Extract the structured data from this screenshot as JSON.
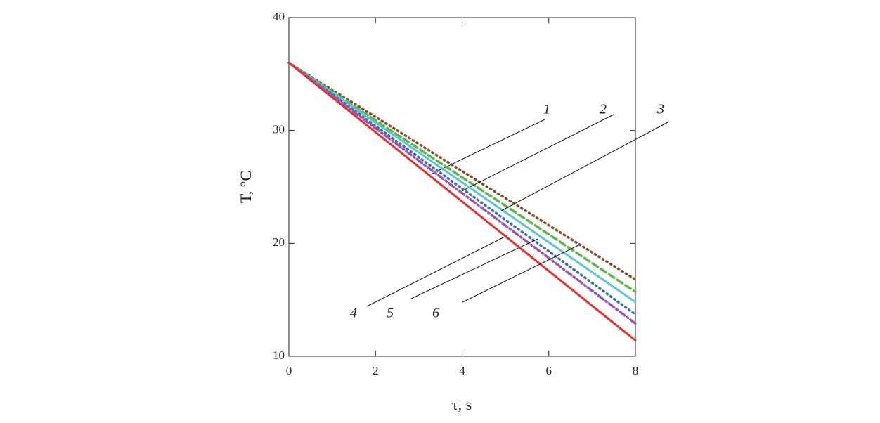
{
  "chart_data": {
    "type": "line",
    "xlabel": "τ, s",
    "ylabel": "T, °C",
    "x": [
      0,
      2,
      4,
      6,
      8
    ],
    "xlim": [
      0,
      8
    ],
    "xticks": [
      0,
      2,
      4,
      6,
      8
    ],
    "ylim": [
      10,
      40
    ],
    "yticks": [
      10,
      20,
      30,
      40
    ],
    "grid": false,
    "series": [
      {
        "name": "1",
        "color": "#8b4a2b",
        "style": "dotted",
        "values": [
          36,
          31.2,
          26.4,
          21.6,
          16.8
        ]
      },
      {
        "name": "2",
        "color": "#5cb84a",
        "style": "dashed",
        "values": [
          36,
          30.9,
          25.85,
          20.8,
          15.7
        ]
      },
      {
        "name": "3",
        "color": "#5bc4d8",
        "style": "solid",
        "values": [
          36,
          30.7,
          25.4,
          20.1,
          14.8
        ]
      },
      {
        "name": "4",
        "color": "#3a6fb0",
        "style": "dotted",
        "values": [
          36,
          30.4,
          24.85,
          19.3,
          13.7
        ]
      },
      {
        "name": "5",
        "color": "#9b55b5",
        "style": "dashdot",
        "values": [
          36,
          30.2,
          24.45,
          18.7,
          12.9
        ]
      },
      {
        "name": "6",
        "color": "#e8302e",
        "style": "solid",
        "values": [
          36,
          29.85,
          23.7,
          17.55,
          11.4
        ]
      }
    ]
  }
}
